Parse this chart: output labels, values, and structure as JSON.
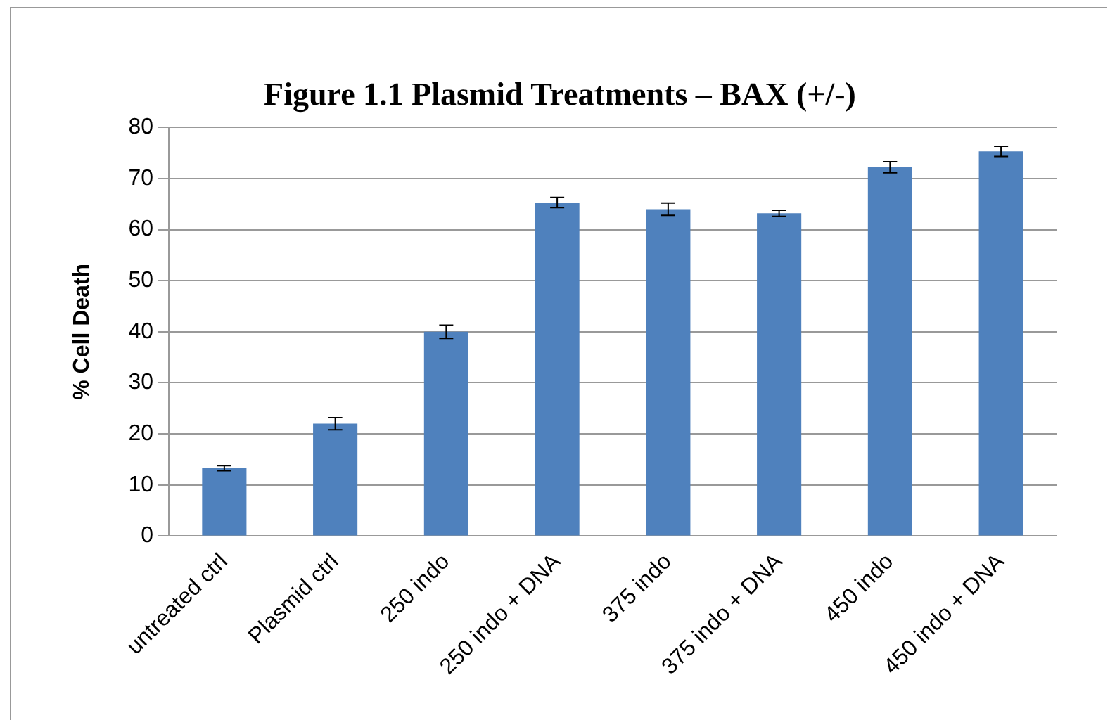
{
  "chart_data": {
    "type": "bar",
    "title": "Figure 1.1 Plasmid Treatments – BAX (+/-)",
    "ylabel": "% Cell Death",
    "categories": [
      "untreated ctrl",
      "Plasmid ctrl",
      "250 indo",
      "250 indo + DNA",
      "375 indo",
      "375 indo + DNA",
      "450 indo",
      "450 indo + DNA"
    ],
    "values": [
      13.3,
      22,
      40,
      65.3,
      64,
      63.2,
      72.2,
      75.3
    ],
    "errors": [
      0.5,
      1.2,
      1.3,
      1,
      1.2,
      0.6,
      1.1,
      1
    ],
    "color": "#4f81bd",
    "ylim": [
      0,
      80
    ],
    "yticks": [
      0,
      10,
      20,
      30,
      40,
      50,
      60,
      70,
      80
    ],
    "grid": "y",
    "legend": false
  }
}
